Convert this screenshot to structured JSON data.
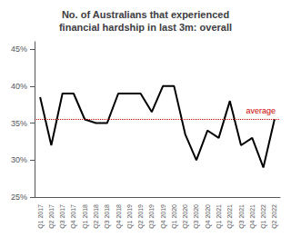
{
  "chart_data": {
    "type": "line",
    "title": "No. of Australians that experienced\nfinancial hardship in last 3m: overall",
    "categories": [
      "Q1 2017",
      "Q2 2017",
      "Q3 2017",
      "Q4 2017",
      "Q1 2018",
      "Q2 2018",
      "Q3 2018",
      "Q4 2018",
      "Q1 2019",
      "Q2 2019",
      "Q3 2019",
      "Q4 2019",
      "Q1 2020",
      "Q2 2020",
      "Q3 2020",
      "Q4 2020",
      "Q1 2021",
      "Q2 2021",
      "Q3 2021",
      "Q4 2021",
      "Q1 2022",
      "Q2 2022"
    ],
    "values": [
      38.5,
      32.0,
      39.0,
      39.0,
      35.5,
      35.0,
      35.0,
      39.0,
      39.0,
      39.0,
      36.5,
      40.0,
      40.0,
      33.5,
      30.0,
      34.0,
      33.0,
      38.0,
      32.0,
      33.0,
      29.0,
      35.5
    ],
    "color": "#000000",
    "ylim": [
      25,
      46
    ],
    "yticks": [
      {
        "value": 25,
        "label": "25%"
      },
      {
        "value": 30,
        "label": "30%"
      },
      {
        "value": 35,
        "label": "35%"
      },
      {
        "value": 40,
        "label": "40%"
      },
      {
        "value": 45,
        "label": "45%"
      }
    ],
    "grid": false,
    "annotations": [
      {
        "text": "average",
        "y": 35.5,
        "color": "#cc0000",
        "line_style": "dotted"
      }
    ]
  }
}
